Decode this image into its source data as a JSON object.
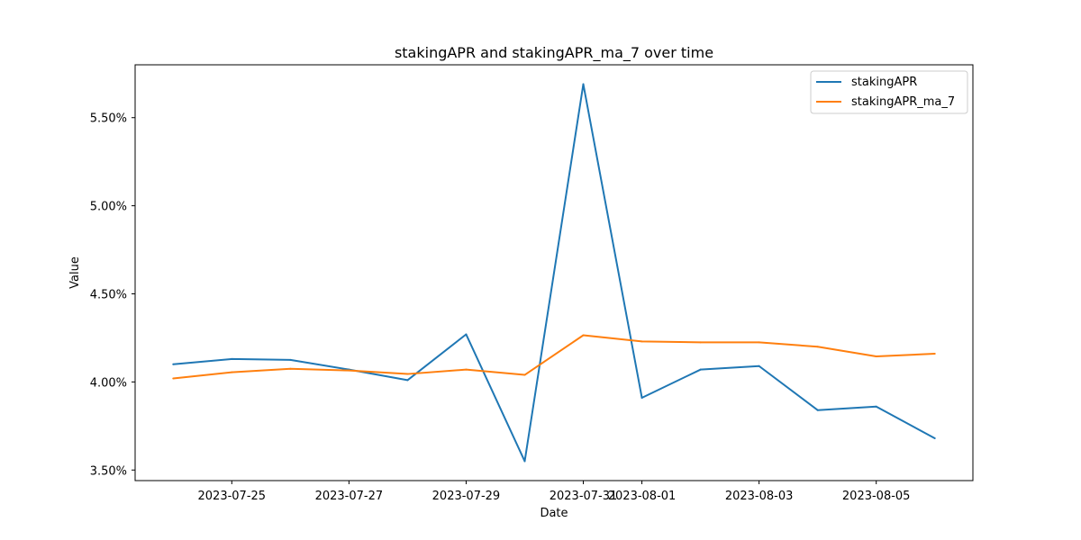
{
  "chart_data": {
    "type": "line",
    "title": "stakingAPR and stakingAPR_ma_7 over time",
    "xlabel": "Date",
    "ylabel": "Value",
    "x": [
      "2023-07-24",
      "2023-07-25",
      "2023-07-26",
      "2023-07-27",
      "2023-07-28",
      "2023-07-29",
      "2023-07-30",
      "2023-07-31",
      "2023-08-01",
      "2023-08-02",
      "2023-08-03",
      "2023-08-04",
      "2023-08-05",
      "2023-08-06"
    ],
    "xlim": [
      "2023-07-23.35",
      "2023-08-06.65"
    ],
    "xticks": [
      "2023-07-25",
      "2023-07-27",
      "2023-07-29",
      "2023-07-31",
      "2023-08-01",
      "2023-08-03",
      "2023-08-05"
    ],
    "ylim": [
      3.44,
      5.8
    ],
    "yticks": [
      3.5,
      4.0,
      4.5,
      5.0,
      5.5
    ],
    "ytick_labels": [
      "3.50%",
      "4.00%",
      "4.50%",
      "5.00%",
      "5.50%"
    ],
    "grid": false,
    "legend_position": "top-right",
    "series": [
      {
        "name": "stakingAPR",
        "color": "#1f77b4",
        "values": [
          4.1,
          4.13,
          4.125,
          4.07,
          4.01,
          4.27,
          3.55,
          5.69,
          3.91,
          4.07,
          4.09,
          3.84,
          3.86,
          3.68
        ]
      },
      {
        "name": "stakingAPR_ma_7",
        "color": "#ff7f0e",
        "values": [
          4.02,
          4.055,
          4.075,
          4.065,
          4.045,
          4.07,
          4.04,
          4.265,
          4.23,
          4.225,
          4.225,
          4.2,
          4.145,
          4.16
        ]
      }
    ]
  }
}
